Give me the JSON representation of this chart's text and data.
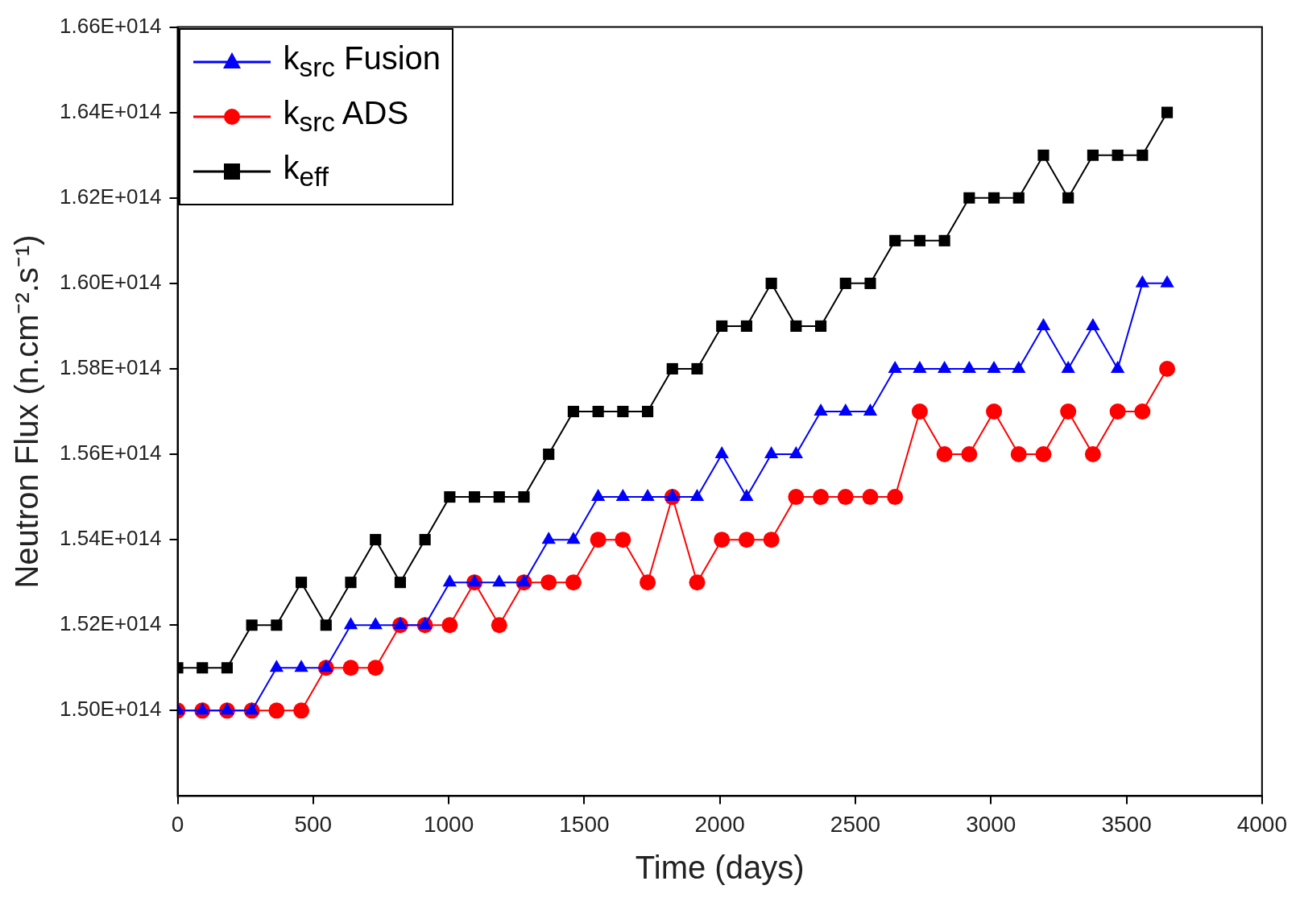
{
  "chart_data": {
    "type": "line",
    "xlabel": "Time (days)",
    "ylabel": "Neutron Flux (n.cm⁻².s⁻¹)",
    "x": [
      0,
      91.25,
      182.5,
      273.75,
      365,
      456.25,
      547.5,
      638.75,
      730,
      821.25,
      912.5,
      1003.75,
      1095,
      1186.25,
      1277.5,
      1368.75,
      1460,
      1551.25,
      1642.5,
      1733.75,
      1825,
      1916.25,
      2007.5,
      2098.75,
      2190,
      2281.25,
      2372.5,
      2463.75,
      2555,
      2646.25,
      2737.5,
      2828.75,
      2920,
      3011.25,
      3102.5,
      3193.75,
      3285,
      3376.25,
      3467.5,
      3558.75,
      3650
    ],
    "series": [
      {
        "name": "k$_{src}$ Fusion",
        "color": "#0000ff",
        "marker": "triangle",
        "values": [
          150000000000000.0,
          150000000000000.0,
          150000000000000.0,
          150000000000000.0,
          151000000000000.0,
          151000000000000.0,
          151000000000000.0,
          152000000000000.0,
          152000000000000.0,
          152000000000000.0,
          152000000000000.0,
          153000000000000.0,
          153000000000000.0,
          153000000000000.0,
          153000000000000.0,
          154000000000000.0,
          154000000000000.0,
          155000000000000.0,
          155000000000000.0,
          155000000000000.0,
          155000000000000.0,
          155000000000000.0,
          156000000000000.0,
          155000000000000.0,
          156000000000000.0,
          156000000000000.0,
          157000000000000.0,
          157000000000000.0,
          157000000000000.0,
          158000000000000.0,
          158000000000000.0,
          158000000000000.0,
          158000000000000.0,
          158000000000000.0,
          158000000000000.0,
          159000000000000.0,
          158000000000000.0,
          159000000000000.0,
          158000000000000.0,
          160000000000000.0,
          160000000000000.0
        ]
      },
      {
        "name": "k$_{src}$ ADS",
        "color": "#ff0000",
        "marker": "circle",
        "values": [
          150000000000000.0,
          150000000000000.0,
          150000000000000.0,
          150000000000000.0,
          150000000000000.0,
          150000000000000.0,
          151000000000000.0,
          151000000000000.0,
          151000000000000.0,
          152000000000000.0,
          152000000000000.0,
          152000000000000.0,
          153000000000000.0,
          152000000000000.0,
          153000000000000.0,
          153000000000000.0,
          153000000000000.0,
          154000000000000.0,
          154000000000000.0,
          153000000000000.0,
          155000000000000.0,
          153000000000000.0,
          154000000000000.0,
          154000000000000.0,
          154000000000000.0,
          155000000000000.0,
          155000000000000.0,
          155000000000000.0,
          155000000000000.0,
          155000000000000.0,
          157000000000000.0,
          156000000000000.0,
          156000000000000.0,
          157000000000000.0,
          156000000000000.0,
          156000000000000.0,
          157000000000000.0,
          156000000000000.0,
          157000000000000.0,
          157000000000000.0,
          158000000000000.0
        ]
      },
      {
        "name": "k$_{eff}$",
        "color": "#000000",
        "marker": "square",
        "values": [
          151000000000000.0,
          151000000000000.0,
          151000000000000.0,
          152000000000000.0,
          152000000000000.0,
          153000000000000.0,
          152000000000000.0,
          153000000000000.0,
          154000000000000.0,
          153000000000000.0,
          154000000000000.0,
          155000000000000.0,
          155000000000000.0,
          155000000000000.0,
          155000000000000.0,
          156000000000000.0,
          157000000000000.0,
          157000000000000.0,
          157000000000000.0,
          157000000000000.0,
          158000000000000.0,
          158000000000000.0,
          159000000000000.0,
          159000000000000.0,
          160000000000000.0,
          159000000000000.0,
          159000000000000.0,
          160000000000000.0,
          160000000000000.0,
          161000000000000.0,
          161000000000000.0,
          161000000000000.0,
          162000000000000.0,
          162000000000000.0,
          162000000000000.0,
          163000000000000.0,
          162000000000000.0,
          163000000000000.0,
          163000000000000.0,
          163000000000000.0,
          164000000000000.0
        ]
      }
    ],
    "xlim": [
      0,
      4000
    ],
    "xticks": [
      0,
      500,
      1000,
      1500,
      2000,
      2500,
      3000,
      3500,
      4000
    ],
    "ylim": [
      148000000000000.0,
      166000000000000.0
    ],
    "yticks": [
      {
        "value": 150000000000000.0,
        "label": "1.50E+014"
      },
      {
        "value": 152000000000000.0,
        "label": "1.52E+014"
      },
      {
        "value": 154000000000000.0,
        "label": "1.54E+014"
      },
      {
        "value": 156000000000000.0,
        "label": "1.56E+014"
      },
      {
        "value": 158000000000000.0,
        "label": "1.58E+014"
      },
      {
        "value": 160000000000000.0,
        "label": "1.60E+014"
      },
      {
        "value": 162000000000000.0,
        "label": "1.62E+014"
      },
      {
        "value": 164000000000000.0,
        "label": "1.64E+014"
      },
      {
        "value": 166000000000000.0,
        "label": "1.66E+014"
      }
    ],
    "legend": "top left",
    "line_style": "solid"
  }
}
